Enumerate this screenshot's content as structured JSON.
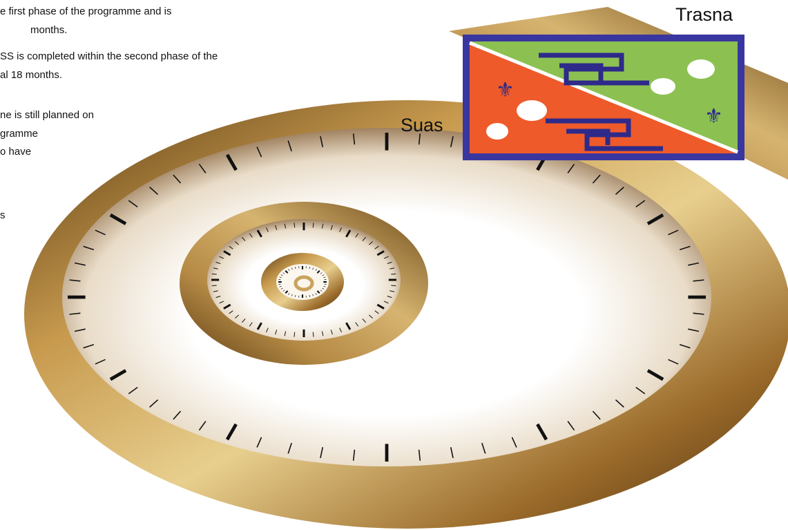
{
  "text_lines": [
    "e first phase of the programme and is",
    "months.",
    "SS is completed within the second phase of the",
    "al 18 months.",
    "ne is still planned on",
    "gramme",
    "o have",
    "s"
  ],
  "labels": {
    "top": "Trasna",
    "left": "Suas"
  }
}
